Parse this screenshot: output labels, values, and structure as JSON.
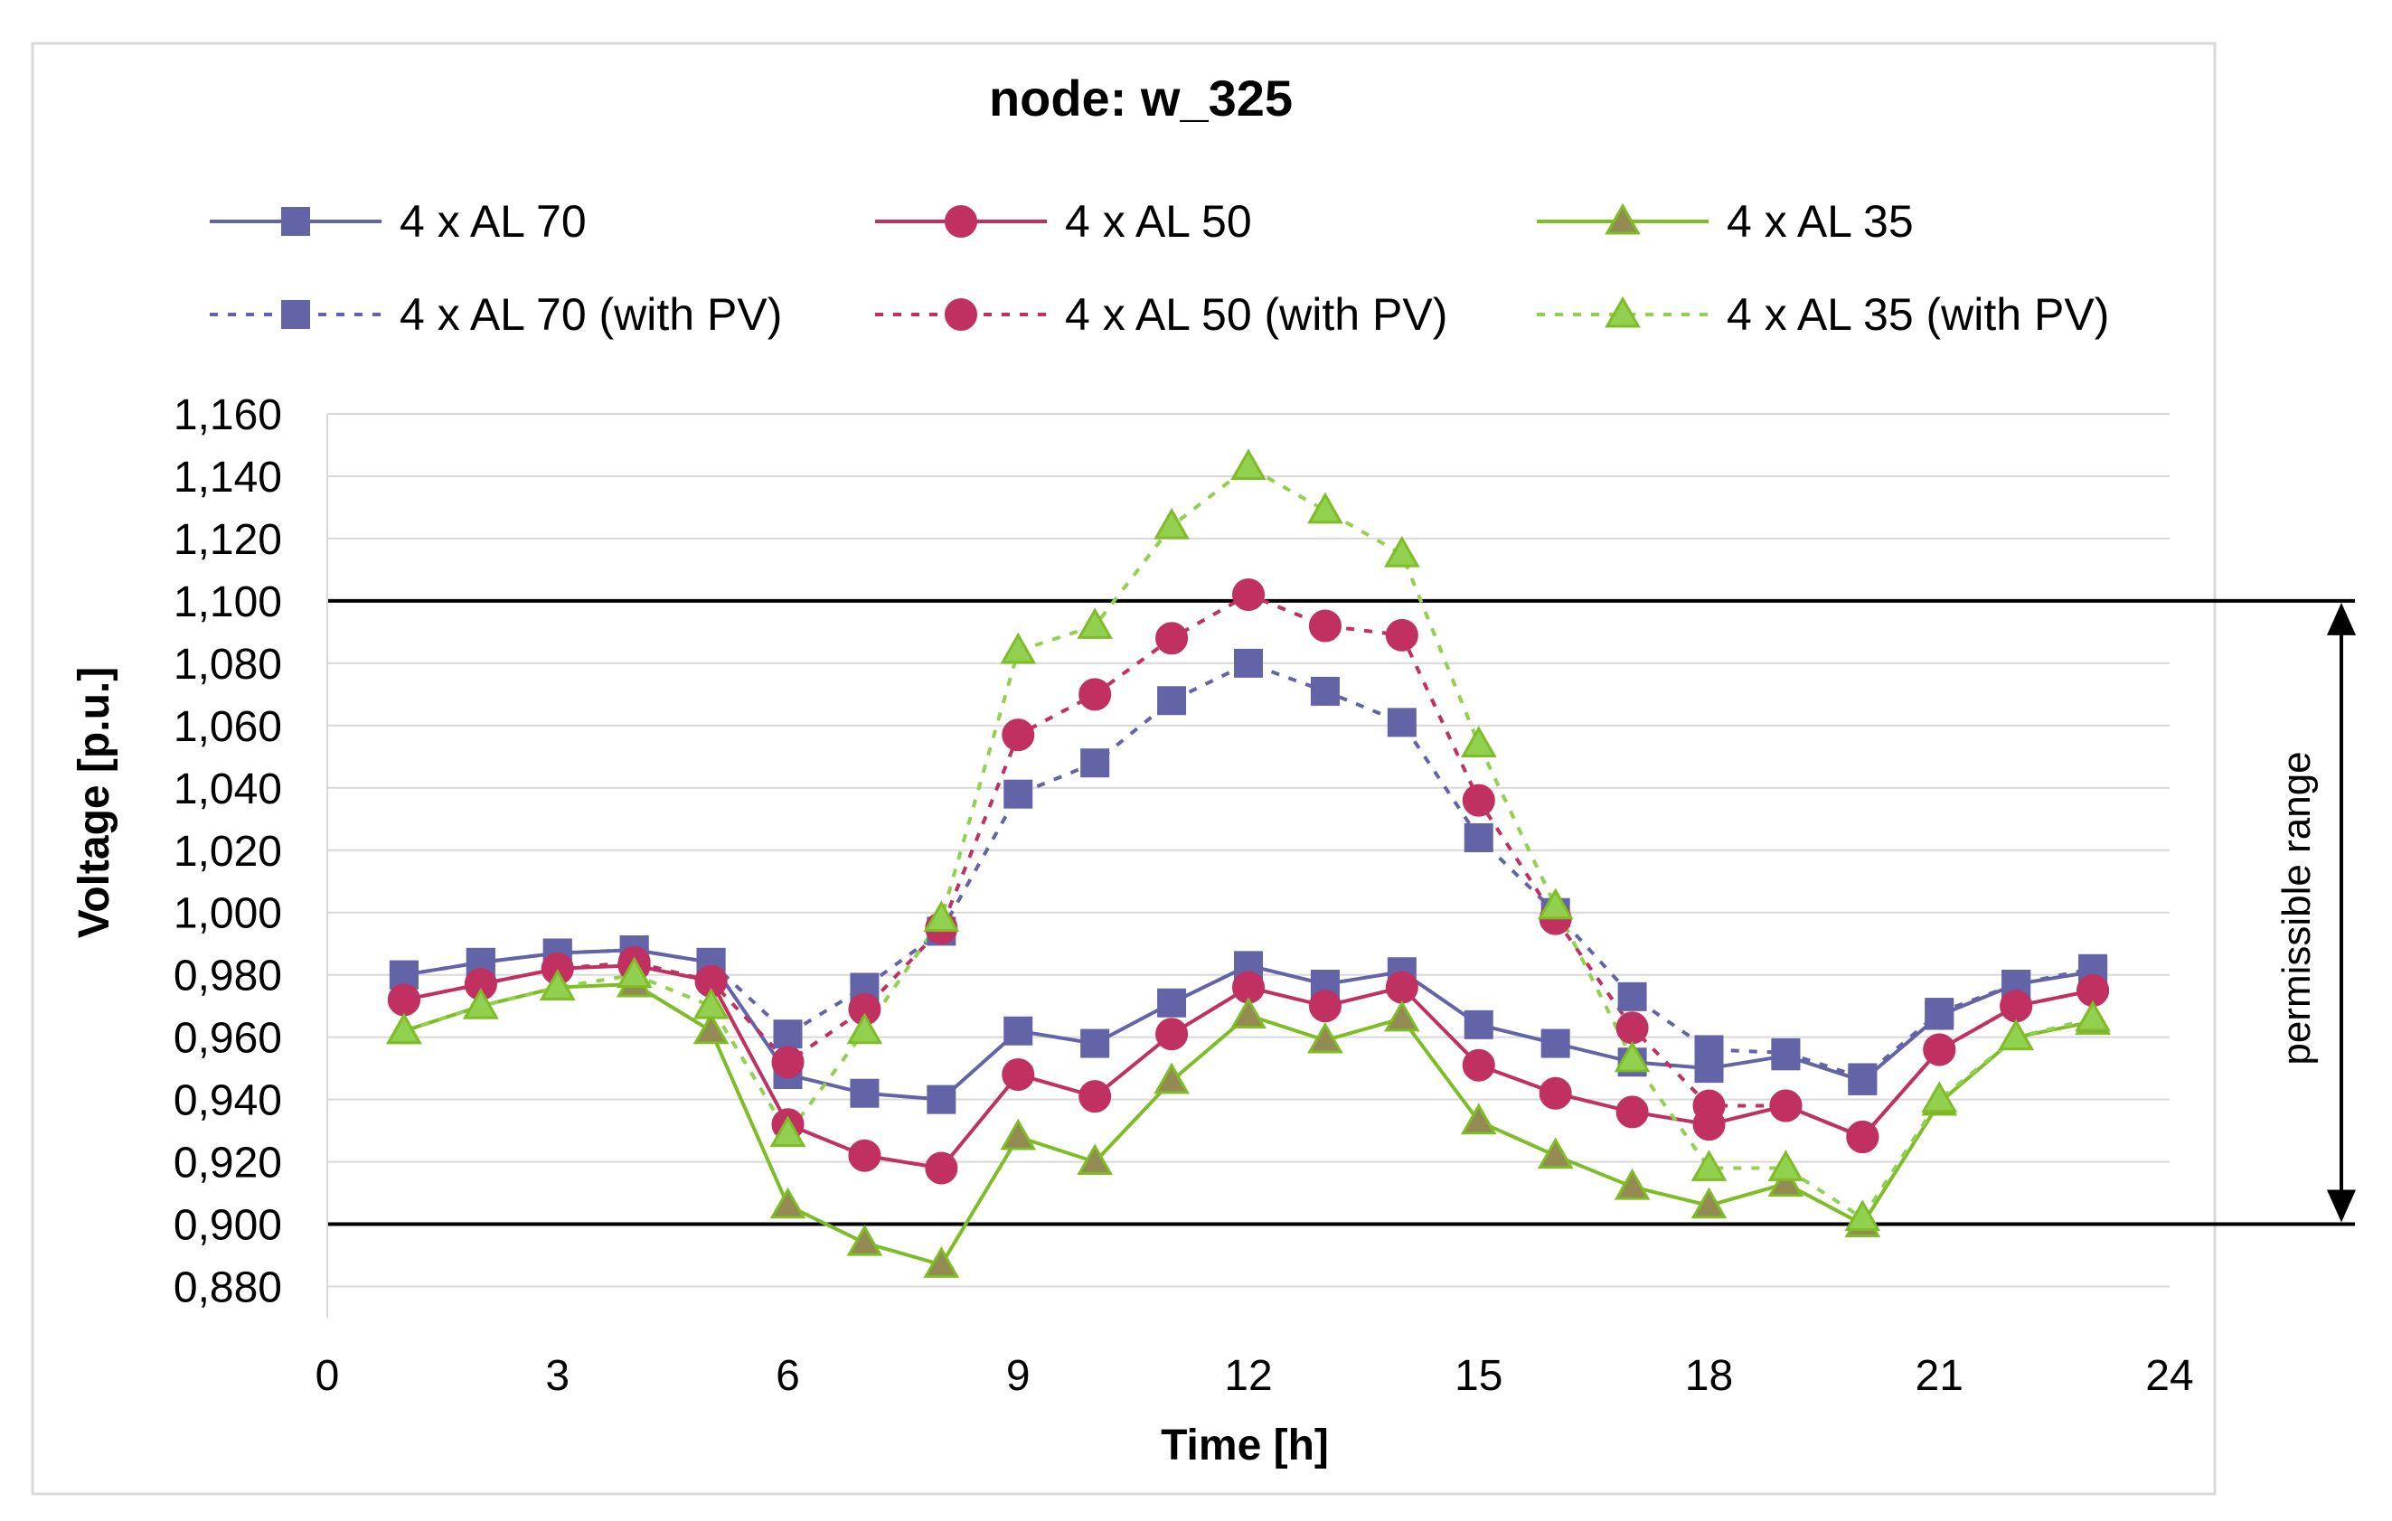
{
  "chart_data": {
    "type": "line",
    "title": "node: w_325",
    "xlabel": "Time [h]",
    "ylabel": "Voltage [p.u.]",
    "xlim": [
      0,
      24
    ],
    "ylim": [
      0.87,
      1.16
    ],
    "x_ticks": [
      0,
      3,
      6,
      9,
      12,
      15,
      18,
      21,
      24
    ],
    "x_tick_labels": [
      "0",
      "3",
      "6",
      "9",
      "12",
      "15",
      "18",
      "21",
      "24"
    ],
    "y_ticks": [
      0.88,
      0.9,
      0.92,
      0.94,
      0.96,
      0.98,
      1.0,
      1.02,
      1.04,
      1.06,
      1.08,
      1.1,
      1.12,
      1.14,
      1.16
    ],
    "y_tick_labels": [
      "0,880",
      "0,900",
      "0,920",
      "0,940",
      "0,960",
      "0,980",
      "1,000",
      "1,020",
      "1,040",
      "1,060",
      "1,080",
      "1,100",
      "1,120",
      "1,140",
      "1,160"
    ],
    "grid": true,
    "legend_position": "top",
    "reference_lines": [
      {
        "name": "upper-limit",
        "value": 1.1
      },
      {
        "name": "lower-limit",
        "value": 0.9
      }
    ],
    "annotation": "permissible range",
    "x": [
      1,
      2,
      3,
      4,
      5,
      6,
      7,
      8,
      9,
      10,
      11,
      12,
      13,
      14,
      15,
      16,
      17,
      18,
      19,
      20,
      21,
      22,
      23
    ],
    "series": [
      {
        "name": "4 x AL 70",
        "color": "#6264a7",
        "marker": "square",
        "dash": "solid",
        "values": [
          0.98,
          0.984,
          0.987,
          0.988,
          0.984,
          0.948,
          0.942,
          0.94,
          0.962,
          0.958,
          0.971,
          0.983,
          0.977,
          0.981,
          0.964,
          0.958,
          0.952,
          0.95,
          0.954,
          0.946,
          0.967,
          0.977,
          0.981
        ]
      },
      {
        "name": "4 x AL 50",
        "color": "#c03060",
        "marker": "circle",
        "dash": "solid",
        "values": [
          0.972,
          0.977,
          0.982,
          0.983,
          0.978,
          0.932,
          0.922,
          0.918,
          0.948,
          0.941,
          0.961,
          0.976,
          0.97,
          0.976,
          0.951,
          0.942,
          0.936,
          0.932,
          0.938,
          0.928,
          0.956,
          0.97,
          0.975
        ]
      },
      {
        "name": "4 x AL 35",
        "color": "#7ebd25",
        "marker": "triangle",
        "dash": "solid",
        "marker_fill": "#948a54",
        "values": [
          0.962,
          0.97,
          0.976,
          0.977,
          0.962,
          0.906,
          0.894,
          0.887,
          0.928,
          0.92,
          0.946,
          0.967,
          0.959,
          0.966,
          0.933,
          0.922,
          0.912,
          0.906,
          0.913,
          0.9,
          0.939,
          0.96,
          0.965
        ]
      },
      {
        "name": "4 x AL 70 (with PV)",
        "color": "#6264a7",
        "marker": "square",
        "dash": "dotted",
        "values": [
          0.98,
          0.984,
          0.987,
          0.988,
          0.984,
          0.961,
          0.976,
          0.994,
          1.038,
          1.048,
          1.068,
          1.08,
          1.071,
          1.061,
          1.024,
          1.0,
          0.973,
          0.956,
          0.955,
          0.947,
          0.968,
          0.977,
          0.982
        ]
      },
      {
        "name": "4 x AL 50 (with PV)",
        "color": "#c03060",
        "marker": "circle",
        "dash": "dotted",
        "values": [
          0.972,
          0.977,
          0.982,
          0.984,
          0.978,
          0.952,
          0.969,
          0.995,
          1.057,
          1.07,
          1.088,
          1.102,
          1.092,
          1.089,
          1.036,
          0.998,
          0.963,
          0.938,
          0.938,
          0.928,
          0.956,
          0.97,
          0.975
        ]
      },
      {
        "name": "4 x AL 35 (with PV)",
        "color": "#92d050",
        "marker": "triangle",
        "dash": "dotted",
        "marker_fill": "#92d050",
        "values": [
          0.962,
          0.97,
          0.976,
          0.98,
          0.97,
          0.929,
          0.962,
          0.998,
          1.084,
          1.092,
          1.124,
          1.143,
          1.129,
          1.115,
          1.054,
          1.002,
          0.953,
          0.918,
          0.918,
          0.902,
          0.94,
          0.96,
          0.966
        ]
      }
    ]
  }
}
